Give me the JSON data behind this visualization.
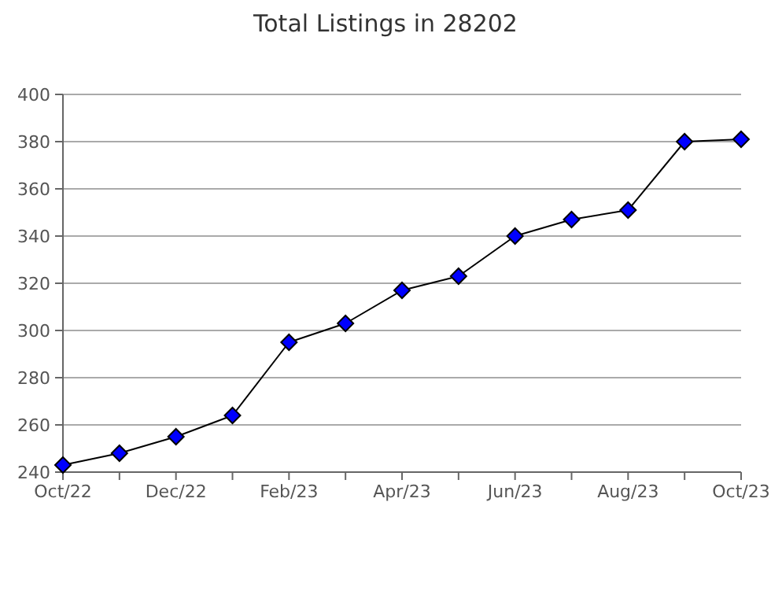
{
  "chart_data": {
    "type": "line",
    "title": "Total Listings in 28202",
    "categories": [
      "Oct/22",
      null,
      "Dec/22",
      null,
      "Feb/23",
      null,
      "Apr/23",
      null,
      "Jun/23",
      null,
      "Aug/23",
      null,
      "Oct/23"
    ],
    "series": [
      {
        "color": "#0000ff",
        "values": [
          243,
          248,
          255,
          264,
          295,
          303,
          317,
          323,
          340,
          347,
          351,
          380,
          381
        ]
      }
    ],
    "ylim": [
      240,
      400
    ],
    "yticks": [
      240,
      260,
      280,
      300,
      320,
      340,
      360,
      380,
      400
    ],
    "grid": "y",
    "marker": "diamond"
  }
}
